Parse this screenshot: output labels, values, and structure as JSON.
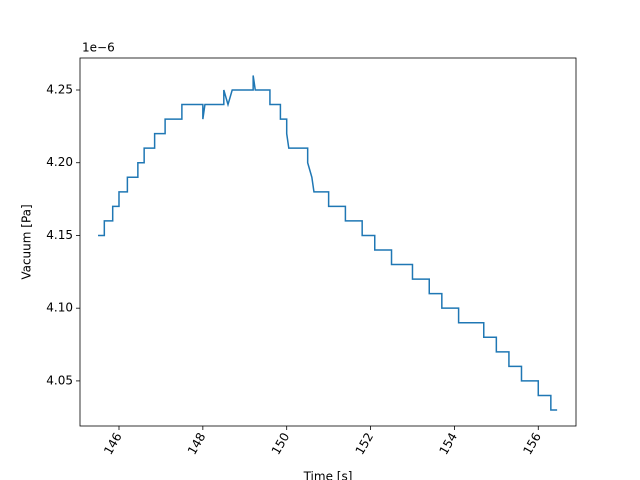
{
  "chart_data": {
    "type": "line",
    "xlabel": "Time [s]",
    "ylabel": "Vacuum [Pa]",
    "offset_text": "1e−6",
    "color": "#1f77b4",
    "x": [
      145.5,
      145.65,
      145.65,
      145.85,
      145.85,
      146.0,
      146.0,
      146.2,
      146.2,
      146.45,
      146.45,
      146.6,
      146.6,
      146.85,
      146.85,
      147.1,
      147.1,
      147.5,
      147.5,
      148.0,
      148.0,
      148.05,
      148.5,
      148.5,
      148.6,
      148.7,
      149.2,
      149.2,
      149.25,
      149.6,
      149.6,
      149.85,
      149.85,
      150.0,
      150.0,
      150.05,
      150.5,
      150.5,
      150.6,
      150.65,
      151.0,
      151.0,
      151.4,
      151.4,
      151.8,
      151.8,
      152.1,
      152.1,
      152.5,
      152.5,
      153.0,
      153.0,
      153.4,
      153.4,
      153.7,
      153.7,
      154.1,
      154.1,
      154.7,
      154.7,
      155.0,
      155.0,
      155.3,
      155.3,
      155.6,
      155.6,
      156.0,
      156.0,
      156.3,
      156.3,
      156.45
    ],
    "values": [
      4.15,
      4.15,
      4.16,
      4.16,
      4.17,
      4.17,
      4.18,
      4.18,
      4.19,
      4.19,
      4.2,
      4.2,
      4.21,
      4.21,
      4.22,
      4.22,
      4.23,
      4.23,
      4.24,
      4.24,
      4.23,
      4.24,
      4.24,
      4.25,
      4.24,
      4.25,
      4.25,
      4.26,
      4.25,
      4.25,
      4.24,
      4.24,
      4.23,
      4.23,
      4.22,
      4.21,
      4.21,
      4.2,
      4.19,
      4.18,
      4.18,
      4.17,
      4.17,
      4.16,
      4.16,
      4.15,
      4.15,
      4.14,
      4.14,
      4.13,
      4.13,
      4.12,
      4.12,
      4.11,
      4.11,
      4.1,
      4.1,
      4.09,
      4.09,
      4.08,
      4.08,
      4.07,
      4.07,
      4.06,
      4.06,
      4.05,
      4.05,
      4.04,
      4.04,
      4.03,
      4.03
    ],
    "xlim": [
      145.07,
      156.9
    ],
    "ylim": [
      4.019,
      4.272
    ],
    "xticks": [
      146,
      148,
      150,
      152,
      154,
      156
    ],
    "yticks": [
      4.05,
      {
        "value": 4.1,
        "label": "4.10"
      },
      4.15,
      {
        "value": 4.2,
        "label": "4.20"
      },
      4.25
    ]
  }
}
